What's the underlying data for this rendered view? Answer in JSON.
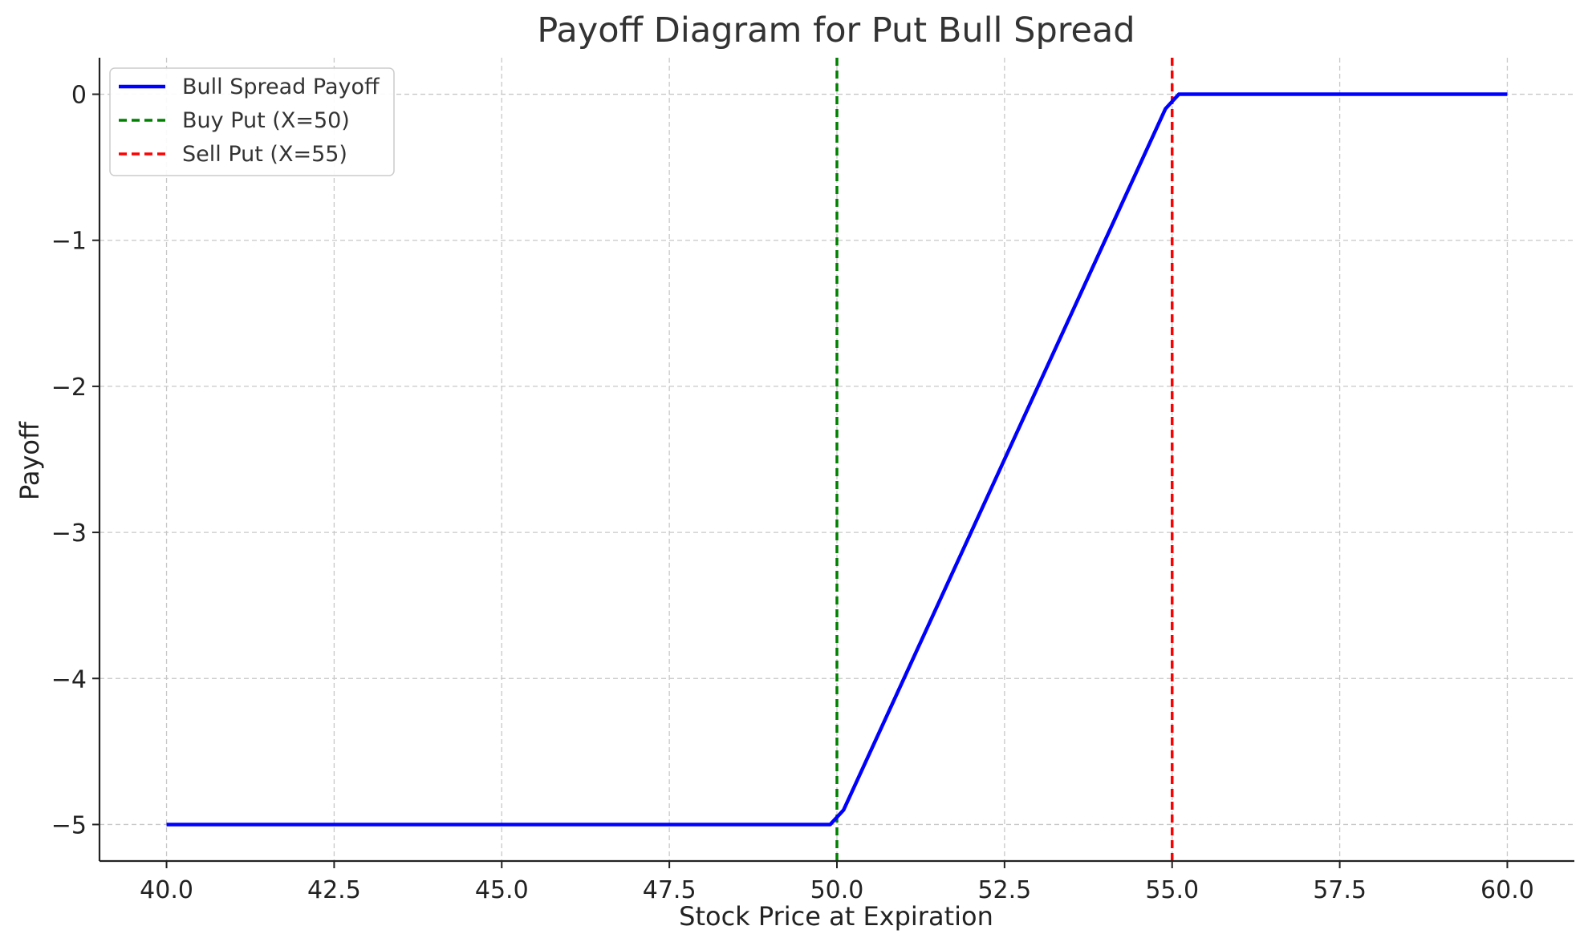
{
  "chart_data": {
    "type": "line",
    "title": "Payoff Diagram for Put Bull Spread",
    "xlabel": "Stock Price at Expiration",
    "ylabel": "Payoff",
    "xlim": [
      39.0,
      61.0
    ],
    "ylim": [
      -5.25,
      0.25
    ],
    "xticks": [
      40.0,
      42.5,
      45.0,
      47.5,
      50.0,
      52.5,
      55.0,
      57.5,
      60.0
    ],
    "xtick_labels": [
      "40.0",
      "42.5",
      "45.0",
      "47.5",
      "50.0",
      "52.5",
      "55.0",
      "57.5",
      "60.0"
    ],
    "yticks": [
      0,
      -1,
      -2,
      -3,
      -4,
      -5
    ],
    "ytick_labels": [
      "0",
      "−1",
      "−2",
      "−3",
      "−4",
      "−5"
    ],
    "grid": true,
    "legend_position": "top-left",
    "series": [
      {
        "name": "Bull Spread Payoff",
        "color": "#0000ff",
        "style": "solid",
        "x": [
          40.0,
          49.9,
          50.1,
          54.9,
          55.1,
          60.0
        ],
        "y": [
          -5,
          -5,
          -4.9,
          -0.1,
          0,
          0
        ]
      }
    ],
    "vlines": [
      {
        "name": "Buy Put (X=50)",
        "x": 50.0,
        "color": "#008000",
        "style": "dashed"
      },
      {
        "name": "Sell Put (X=55)",
        "x": 55.0,
        "color": "#ff0000",
        "style": "dashed"
      }
    ]
  }
}
